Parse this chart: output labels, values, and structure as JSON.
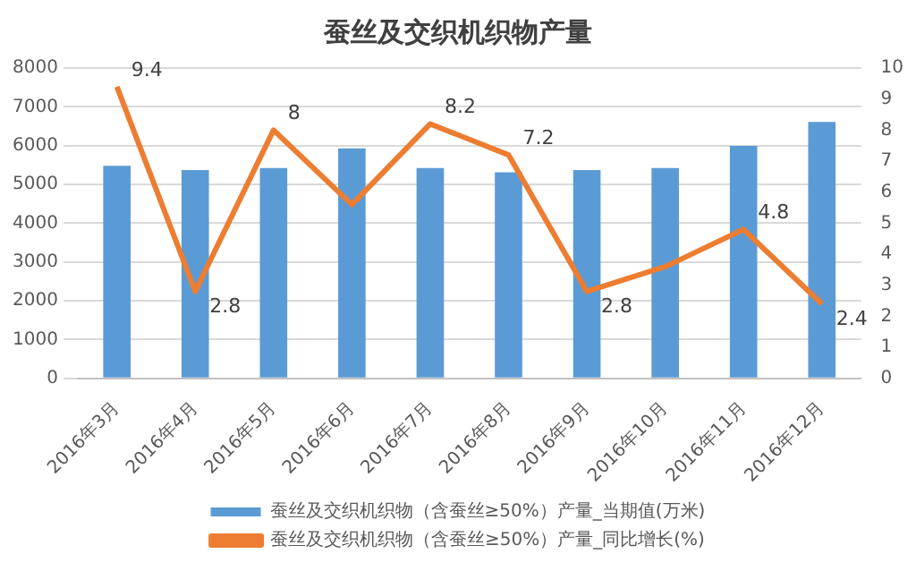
{
  "chart_data": {
    "type": "bar",
    "title": "蚕丝及交织机织物产量",
    "categories": [
      "2016年3月",
      "2016年4月",
      "2016年5月",
      "2016年6月",
      "2016年7月",
      "2016年8月",
      "2016年9月",
      "2016年10月",
      "2016年11月",
      "2016年12月"
    ],
    "series": [
      {
        "name": "蚕丝及交织机织物（含蚕丝≥50%）产量_当期值(万米)",
        "color": "#5b9bd5",
        "values": [
          5480,
          5370,
          5420,
          5930,
          5420,
          5310,
          5370,
          5420,
          5990,
          6610
        ]
      },
      {
        "name": "蚕丝及交织机织物（含蚕丝≥50%）产量_同比增长(%)",
        "type": "line",
        "axis": "y2",
        "color": "#ed7d31",
        "marker": "none",
        "values": [
          9.4,
          2.8,
          8,
          5.6,
          8.2,
          7.2,
          2.8,
          3.6,
          4.8,
          2.4
        ],
        "value_labels": [
          "9.4",
          "2.8",
          "8",
          null,
          "8.2",
          "7.2",
          "2.8",
          null,
          "4.8",
          "2.4"
        ]
      }
    ],
    "ylim": [
      0,
      8000
    ],
    "yticks": [
      0,
      1000,
      2000,
      3000,
      4000,
      5000,
      6000,
      7000,
      8000
    ],
    "y2lim": [
      0,
      10
    ],
    "y2ticks": [
      0,
      1,
      2,
      3,
      4,
      5,
      6,
      7,
      8,
      9,
      10
    ],
    "grid": "y",
    "legend": "bottom"
  }
}
